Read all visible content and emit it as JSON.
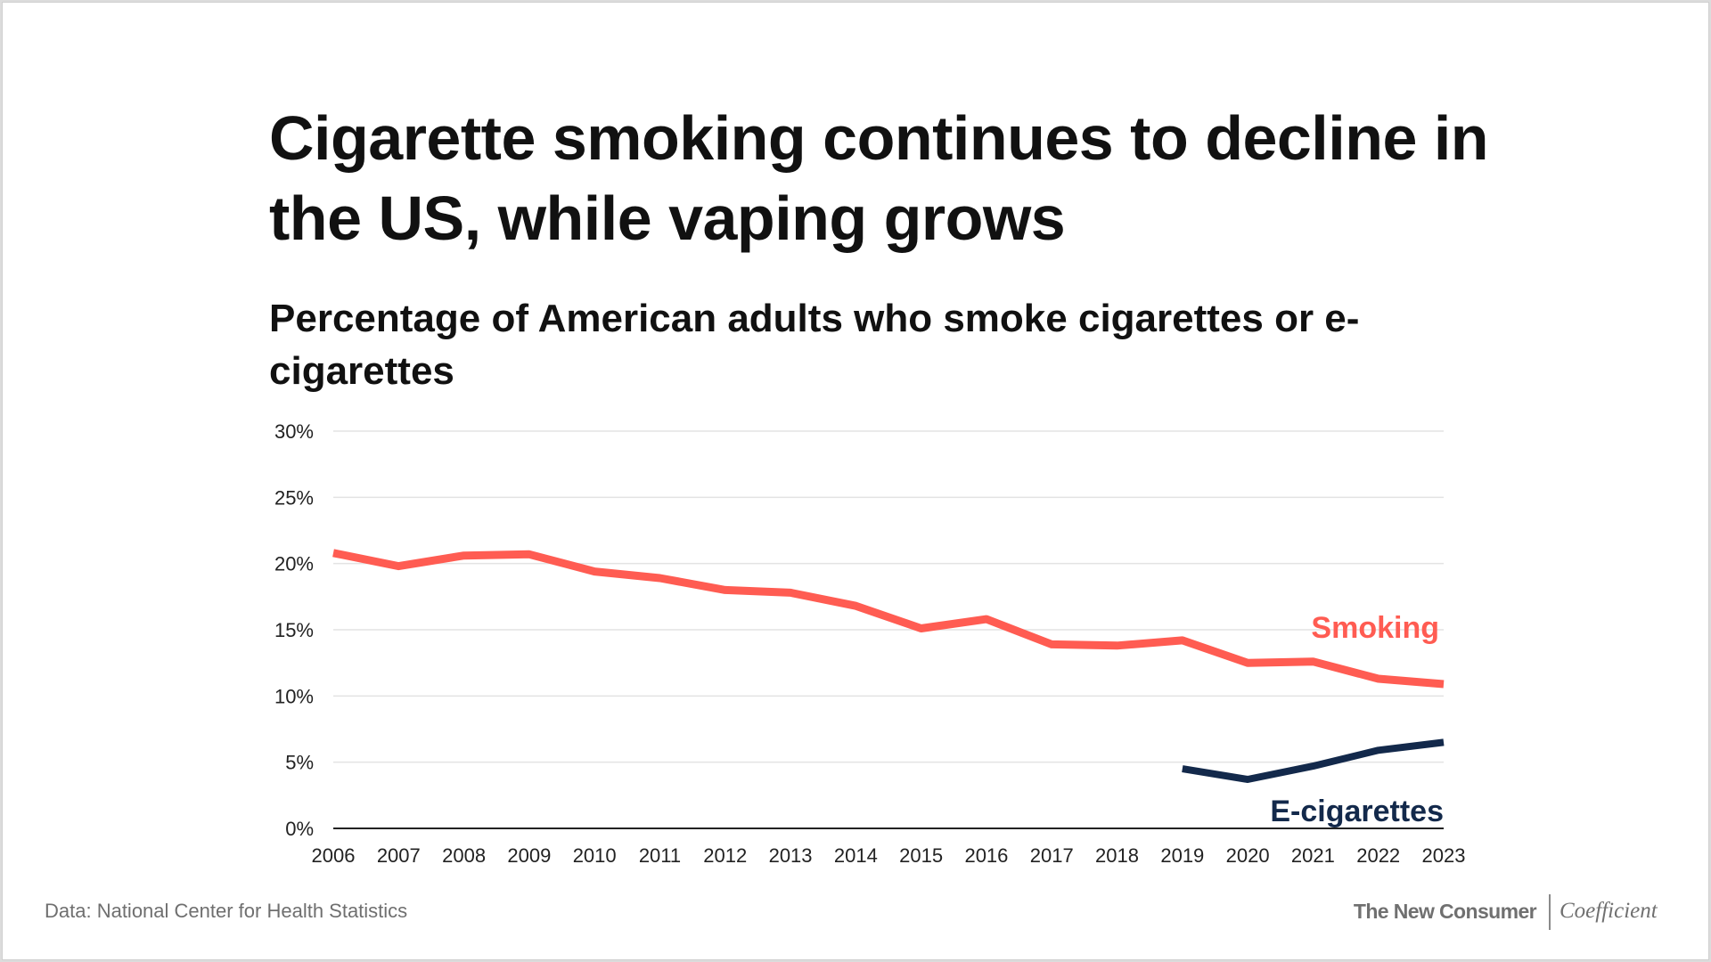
{
  "header": {
    "title": "Cigarette smoking continues to decline in the US, while vaping grows",
    "subtitle": "Percentage of American adults who smoke cigarettes or e-cigarettes"
  },
  "footer": {
    "source": "Data: National Center for Health Statistics",
    "brand_primary": "The New Consumer",
    "brand_secondary": "Coefficient"
  },
  "colors": {
    "smoking": "#ff5c52",
    "ecigarettes": "#13294b",
    "grid": "#e3e3e3",
    "axis": "#222222",
    "text": "#111111"
  },
  "chart_data": {
    "type": "line",
    "title": "Percentage of American adults who smoke cigarettes or e-cigarettes",
    "xlabel": "",
    "ylabel": "",
    "x": [
      2006,
      2007,
      2008,
      2009,
      2010,
      2011,
      2012,
      2013,
      2014,
      2015,
      2016,
      2017,
      2018,
      2019,
      2020,
      2021,
      2022,
      2023
    ],
    "x_tick_labels": [
      "2006",
      "2007",
      "2008",
      "2009",
      "2010",
      "2011",
      "2012",
      "2013",
      "2014",
      "2015",
      "2016",
      "2017",
      "2018",
      "2019",
      "2020",
      "2021",
      "2022",
      "2023"
    ],
    "ylim": [
      0,
      30
    ],
    "y_ticks": [
      0,
      5,
      10,
      15,
      20,
      25,
      30
    ],
    "y_tick_labels": [
      "0%",
      "5%",
      "10%",
      "15%",
      "20%",
      "25%",
      "30%"
    ],
    "grid": true,
    "series": [
      {
        "name": "Smoking",
        "label": "Smoking",
        "x": [
          2006,
          2007,
          2008,
          2009,
          2010,
          2011,
          2012,
          2013,
          2014,
          2015,
          2016,
          2017,
          2018,
          2019,
          2020,
          2021,
          2022,
          2023
        ],
        "values": [
          20.8,
          19.8,
          20.6,
          20.7,
          19.4,
          18.9,
          18.0,
          17.8,
          16.8,
          15.1,
          15.8,
          13.9,
          13.8,
          14.2,
          12.5,
          12.6,
          11.3,
          10.9
        ]
      },
      {
        "name": "E-cigarettes",
        "label": "E-cigarettes",
        "x": [
          2019,
          2020,
          2021,
          2022,
          2023
        ],
        "values": [
          4.5,
          3.7,
          4.7,
          5.9,
          6.5
        ]
      }
    ]
  }
}
